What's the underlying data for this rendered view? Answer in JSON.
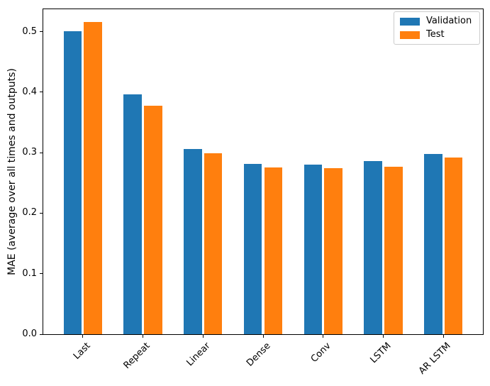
{
  "figure": {
    "background": "#ffffff",
    "axes_color": "#000000"
  },
  "chart_data": {
    "type": "bar",
    "title": "",
    "xlabel": "",
    "ylabel": "MAE (average over all times and outputs)",
    "categories": [
      "Last",
      "Repeat",
      "Linear",
      "Dense",
      "Conv",
      "LSTM",
      "AR LSTM"
    ],
    "series": [
      {
        "name": "Validation",
        "color": "#1f77b4",
        "values": [
          0.501,
          0.396,
          0.306,
          0.281,
          0.28,
          0.286,
          0.298
        ]
      },
      {
        "name": "Test",
        "color": "#ff7f0e",
        "values": [
          0.516,
          0.377,
          0.299,
          0.276,
          0.274,
          0.277,
          0.292
        ]
      }
    ],
    "ylim": [
      0,
      0.537
    ],
    "yticks": [
      0.0,
      0.1,
      0.2,
      0.3,
      0.4,
      0.5
    ],
    "ytick_labels": [
      "0.0",
      "0.1",
      "0.2",
      "0.3",
      "0.4",
      "0.5"
    ],
    "xtick_rotation_deg": 45,
    "grid": false,
    "legend": {
      "position": "upper right",
      "entries": [
        "Validation",
        "Test"
      ]
    }
  }
}
